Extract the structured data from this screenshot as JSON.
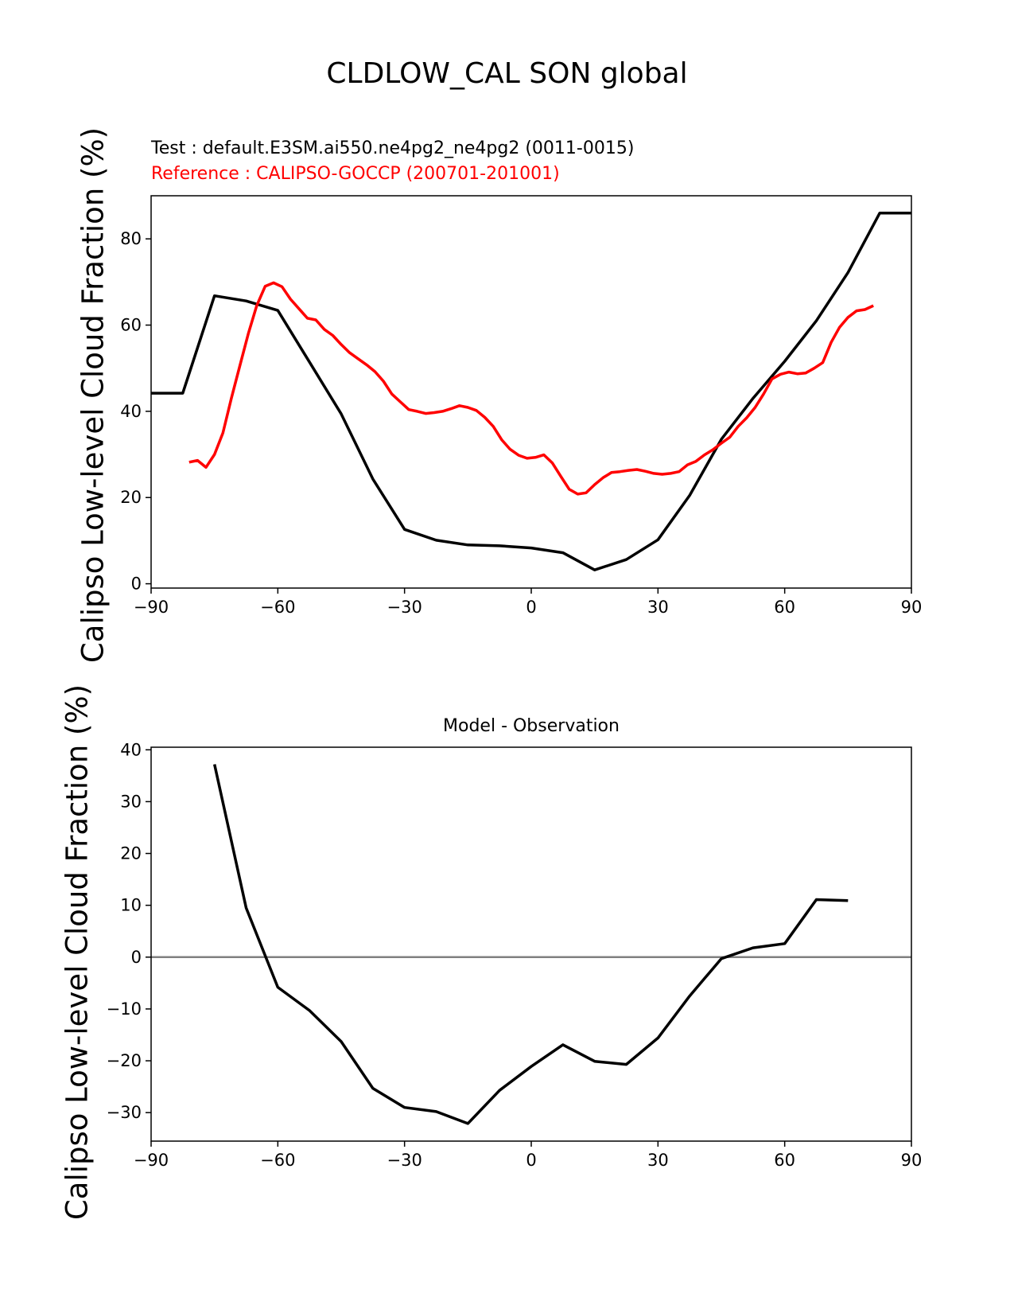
{
  "figure": {
    "suptitle": "CLDLOW_CAL SON global",
    "test_label": "Test : default.E3SM.ai550.ne4pg2_ne4pg2 (0011-0015)",
    "reference_label": "Reference : CALIPSO-GOCCP (200701-201001)",
    "ylabel": "Calipso Low-level Cloud Fraction (%)",
    "colors": {
      "test": "#000000",
      "reference": "#ff0000",
      "zero_line": "#808080",
      "axes": "#000000"
    }
  },
  "chart_data": [
    {
      "type": "line",
      "title": "",
      "xlabel": "",
      "ylabel": "Calipso Low-level Cloud Fraction (%)",
      "xlim": [
        -90,
        90
      ],
      "ylim": [
        -1,
        90
      ],
      "xticks": [
        -90,
        -60,
        -30,
        0,
        30,
        60,
        90
      ],
      "yticks": [
        0,
        20,
        40,
        60,
        80
      ],
      "xtick_labels": [
        "−90",
        "−60",
        "−30",
        "0",
        "30",
        "60",
        "90"
      ],
      "ytick_labels": [
        "0",
        "20",
        "40",
        "60",
        "80"
      ],
      "grid": false,
      "series": [
        {
          "name": "Test : default.E3SM.ai550.ne4pg2_ne4pg2 (0011-0015)",
          "color": "#000000",
          "x": [
            -90,
            -82.5,
            -75,
            -67.5,
            -60,
            -52.5,
            -45,
            -37.5,
            -30,
            -22.5,
            -15,
            -7.5,
            0,
            7.5,
            15,
            22.5,
            30,
            37.5,
            45,
            52.5,
            60,
            67.5,
            75,
            82.5,
            90
          ],
          "y": [
            44.2,
            44.2,
            66.8,
            65.6,
            63.4,
            51.4,
            39.4,
            24.3,
            12.6,
            10.1,
            9.0,
            8.8,
            8.3,
            7.2,
            3.2,
            5.6,
            10.2,
            20.5,
            33.5,
            43.0,
            51.6,
            61.0,
            72.2,
            86.0,
            86.0
          ]
        },
        {
          "name": "Reference : CALIPSO-GOCCP (200701-201001)",
          "color": "#ff0000",
          "x": [
            -81,
            -79,
            -77,
            -75,
            -73,
            -71,
            -69,
            -67,
            -65,
            -63,
            -61,
            -59,
            -57,
            -55,
            -53,
            -51,
            -49,
            -47,
            -45,
            -43,
            -41,
            -39,
            -37,
            -35,
            -33,
            -31,
            -29,
            -27,
            -25,
            -23,
            -21,
            -19,
            -17,
            -15,
            -13,
            -11,
            -9,
            -7,
            -5,
            -3,
            -1,
            1,
            3,
            5,
            7,
            9,
            11,
            13,
            15,
            17,
            19,
            21,
            23,
            25,
            27,
            29,
            31,
            33,
            35,
            37,
            39,
            41,
            43,
            45,
            47,
            49,
            51,
            53,
            55,
            57,
            59,
            61,
            63,
            65,
            67,
            69,
            71,
            73,
            75,
            77,
            79,
            81
          ],
          "y": [
            28.2,
            28.6,
            27.0,
            30.0,
            35.0,
            43.0,
            50.5,
            58.0,
            64.5,
            69.0,
            69.8,
            68.9,
            66.0,
            63.8,
            61.6,
            61.2,
            59.0,
            57.6,
            55.5,
            53.6,
            52.2,
            50.8,
            49.2,
            47.0,
            44.0,
            42.2,
            40.4,
            40.0,
            39.5,
            39.7,
            40.0,
            40.6,
            41.3,
            40.9,
            40.2,
            38.6,
            36.5,
            33.4,
            31.2,
            29.8,
            29.1,
            29.3,
            29.9,
            28.0,
            24.9,
            21.9,
            20.8,
            21.1,
            23.0,
            24.6,
            25.8,
            26.0,
            26.3,
            26.5,
            26.1,
            25.6,
            25.4,
            25.6,
            26.0,
            27.6,
            28.4,
            29.9,
            31.1,
            32.6,
            34.0,
            36.5,
            38.5,
            40.9,
            44.0,
            47.5,
            48.6,
            49.1,
            48.7,
            48.9,
            50.0,
            51.3,
            56.0,
            59.5,
            61.8,
            63.3,
            63.6,
            64.5
          ]
        }
      ]
    },
    {
      "type": "line",
      "title": "Model - Observation",
      "xlabel": "",
      "ylabel": "Calipso Low-level Cloud Fraction (%)",
      "xlim": [
        -90,
        90
      ],
      "ylim": [
        -35.5,
        40.5
      ],
      "xticks": [
        -90,
        -60,
        -30,
        0,
        30,
        60,
        90
      ],
      "yticks": [
        -30,
        -20,
        -10,
        0,
        10,
        20,
        30,
        40
      ],
      "xtick_labels": [
        "−90",
        "−60",
        "−30",
        "0",
        "30",
        "60",
        "90"
      ],
      "ytick_labels": [
        "−30",
        "−20",
        "−10",
        "0",
        "10",
        "20",
        "30",
        "40"
      ],
      "grid": false,
      "zero_line": true,
      "series": [
        {
          "name": "",
          "color": "#000000",
          "x": [
            -75,
            -67.5,
            -60,
            -52.5,
            -45,
            -37.5,
            -30,
            -22.5,
            -15,
            -7.5,
            0,
            7.5,
            15,
            22.5,
            30,
            37.5,
            45,
            52.5,
            60,
            67.5,
            75
          ],
          "y": [
            37.2,
            9.5,
            -5.8,
            -10.3,
            -16.3,
            -25.3,
            -29.0,
            -29.8,
            -32.1,
            -25.7,
            -21.1,
            -16.9,
            -20.1,
            -20.7,
            -15.6,
            -7.5,
            -0.3,
            1.8,
            2.6,
            11.1,
            10.9
          ]
        }
      ]
    }
  ]
}
